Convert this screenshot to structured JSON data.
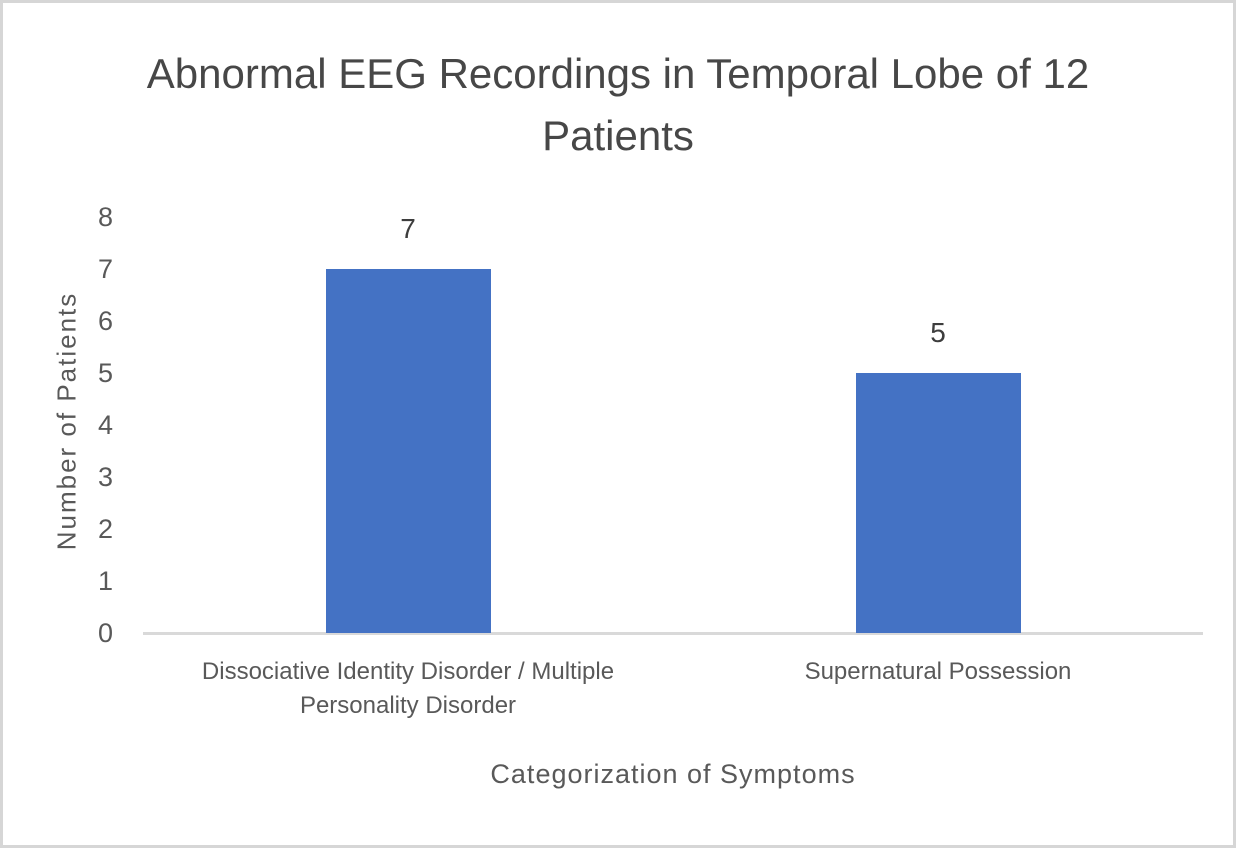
{
  "chart_data": {
    "type": "bar",
    "title": "Abnormal EEG Recordings in Temporal Lobe of 12 Patients",
    "categories": [
      "Dissociative Identity Disorder / Multiple Personality Disorder",
      "Supernatural Possession"
    ],
    "values": [
      7,
      5
    ],
    "data_labels": [
      "7",
      "5"
    ],
    "xlabel": "Categorization of Symptoms",
    "ylabel": "Number of Patients",
    "ylim": [
      0,
      8
    ],
    "ytick_step": 1,
    "yticks": [
      8,
      7,
      6,
      5,
      4,
      3,
      2,
      1,
      0
    ],
    "grid": false,
    "legend_position": "none",
    "colors": {
      "bar": "#4472C4",
      "axis_line": "#D9D9D9",
      "title_text": "#474747",
      "axis_text": "#595959",
      "frame_border": "#D6D6D6"
    }
  }
}
